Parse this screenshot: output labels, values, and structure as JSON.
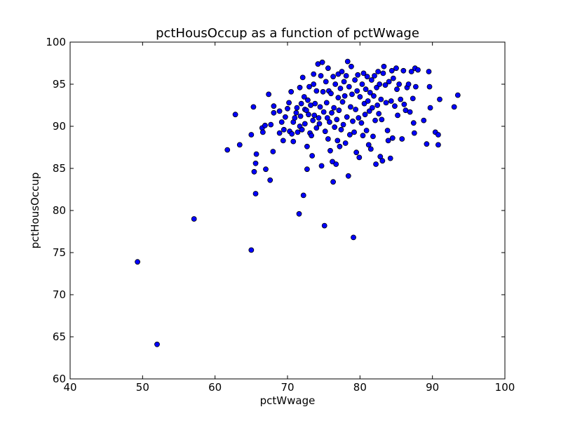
{
  "chart_data": {
    "type": "scatter",
    "title": "pctHousOccup as a function of pctWwage",
    "xlabel": "pctWwage",
    "ylabel": "pctHousOccup",
    "xlim": [
      40,
      100
    ],
    "ylim": [
      60,
      100
    ],
    "xticks": [
      40,
      50,
      60,
      70,
      80,
      90,
      100
    ],
    "yticks": [
      60,
      65,
      70,
      75,
      80,
      85,
      90,
      95,
      100
    ],
    "grid": false,
    "marker_color": "#0000ff",
    "marker_edge_color": "#000000",
    "points": [
      [
        49.3,
        73.9
      ],
      [
        52.0,
        64.1
      ],
      [
        57.1,
        79.0
      ],
      [
        61.7,
        87.2
      ],
      [
        62.8,
        91.4
      ],
      [
        63.4,
        87.8
      ],
      [
        65.0,
        89.0
      ],
      [
        65.0,
        75.3
      ],
      [
        65.3,
        92.3
      ],
      [
        65.4,
        84.6
      ],
      [
        65.6,
        82.0
      ],
      [
        65.6,
        85.6
      ],
      [
        65.7,
        86.7
      ],
      [
        66.5,
        89.8
      ],
      [
        66.6,
        89.3
      ],
      [
        66.9,
        90.1
      ],
      [
        67.0,
        84.9
      ],
      [
        67.4,
        93.8
      ],
      [
        67.6,
        83.6
      ],
      [
        67.7,
        90.2
      ],
      [
        68.0,
        87.0
      ],
      [
        68.1,
        91.6
      ],
      [
        68.1,
        92.4
      ],
      [
        68.9,
        91.8
      ],
      [
        68.9,
        89.2
      ],
      [
        69.2,
        90.5
      ],
      [
        69.4,
        88.3
      ],
      [
        69.5,
        89.6
      ],
      [
        69.7,
        91.1
      ],
      [
        70.0,
        92.1
      ],
      [
        70.2,
        92.8
      ],
      [
        70.3,
        89.4
      ],
      [
        70.5,
        94.1
      ],
      [
        70.6,
        89.1
      ],
      [
        70.8,
        90.5
      ],
      [
        70.8,
        88.2
      ],
      [
        71.0,
        91.0
      ],
      [
        71.2,
        91.6
      ],
      [
        71.3,
        92.2
      ],
      [
        71.4,
        89.3
      ],
      [
        71.6,
        79.6
      ],
      [
        71.7,
        94.6
      ],
      [
        71.7,
        90.0
      ],
      [
        71.8,
        91.2
      ],
      [
        71.9,
        92.7
      ],
      [
        72.0,
        89.6
      ],
      [
        72.1,
        95.8
      ],
      [
        72.2,
        81.8
      ],
      [
        72.3,
        93.5
      ],
      [
        72.4,
        92.0
      ],
      [
        72.4,
        90.3
      ],
      [
        72.6,
        91.9
      ],
      [
        72.7,
        87.6
      ],
      [
        72.7,
        84.9
      ],
      [
        72.8,
        93.1
      ],
      [
        72.9,
        91.4
      ],
      [
        73.0,
        94.7
      ],
      [
        73.1,
        89.2
      ],
      [
        73.2,
        92.5
      ],
      [
        73.3,
        88.9
      ],
      [
        73.4,
        86.5
      ],
      [
        73.5,
        90.7
      ],
      [
        73.6,
        96.2
      ],
      [
        73.6,
        95.0
      ],
      [
        73.7,
        91.3
      ],
      [
        73.8,
        92.7
      ],
      [
        74.0,
        89.8
      ],
      [
        74.0,
        94.2
      ],
      [
        74.2,
        97.4
      ],
      [
        74.3,
        91.0
      ],
      [
        74.4,
        90.3
      ],
      [
        74.5,
        92.3
      ],
      [
        74.6,
        96.0
      ],
      [
        74.7,
        85.3
      ],
      [
        74.8,
        97.6
      ],
      [
        74.9,
        94.1
      ],
      [
        75.0,
        91.7
      ],
      [
        75.1,
        78.2
      ],
      [
        75.2,
        89.4
      ],
      [
        75.3,
        95.3
      ],
      [
        75.4,
        92.8
      ],
      [
        75.5,
        91.0
      ],
      [
        75.6,
        88.5
      ],
      [
        75.6,
        96.9
      ],
      [
        75.7,
        94.2
      ],
      [
        75.8,
        90.5
      ],
      [
        75.9,
        87.1
      ],
      [
        76.0,
        93.9
      ],
      [
        76.1,
        91.6
      ],
      [
        76.2,
        85.8
      ],
      [
        76.3,
        95.9
      ],
      [
        76.3,
        83.4
      ],
      [
        76.4,
        92.2
      ],
      [
        76.5,
        89.9
      ],
      [
        76.6,
        95.0
      ],
      [
        76.7,
        85.5
      ],
      [
        76.8,
        90.8
      ],
      [
        76.9,
        88.3
      ],
      [
        77.0,
        93.4
      ],
      [
        77.0,
        96.2
      ],
      [
        77.1,
        91.9
      ],
      [
        77.2,
        87.6
      ],
      [
        77.3,
        94.5
      ],
      [
        77.4,
        89.6
      ],
      [
        77.5,
        96.5
      ],
      [
        77.6,
        92.9
      ],
      [
        77.7,
        90.2
      ],
      [
        77.8,
        95.3
      ],
      [
        77.9,
        93.6
      ],
      [
        78.0,
        88.0
      ],
      [
        78.1,
        96.0
      ],
      [
        78.2,
        91.1
      ],
      [
        78.3,
        97.7
      ],
      [
        78.4,
        84.1
      ],
      [
        78.5,
        94.7
      ],
      [
        78.6,
        89.0
      ],
      [
        78.7,
        92.3
      ],
      [
        78.8,
        97.1
      ],
      [
        78.9,
        93.8
      ],
      [
        79.0,
        90.6
      ],
      [
        79.1,
        76.8
      ],
      [
        79.2,
        89.3
      ],
      [
        79.3,
        95.5
      ],
      [
        79.4,
        92.0
      ],
      [
        79.5,
        86.9
      ],
      [
        79.6,
        94.2
      ],
      [
        79.7,
        96.1
      ],
      [
        79.8,
        91.0
      ],
      [
        79.9,
        86.3
      ],
      [
        80.0,
        93.5
      ],
      [
        80.2,
        90.4
      ],
      [
        80.3,
        95.0
      ],
      [
        80.4,
        88.9
      ],
      [
        80.5,
        96.3
      ],
      [
        80.6,
        92.7
      ],
      [
        80.7,
        91.4
      ],
      [
        80.8,
        94.4
      ],
      [
        80.9,
        89.5
      ],
      [
        81.0,
        95.9
      ],
      [
        81.1,
        93.0
      ],
      [
        81.2,
        87.8
      ],
      [
        81.3,
        91.8
      ],
      [
        81.4,
        94.0
      ],
      [
        81.5,
        87.3
      ],
      [
        81.6,
        95.5
      ],
      [
        81.7,
        92.2
      ],
      [
        81.8,
        88.8
      ],
      [
        81.9,
        93.6
      ],
      [
        82.0,
        96.0
      ],
      [
        82.1,
        90.7
      ],
      [
        82.2,
        85.5
      ],
      [
        82.3,
        94.6
      ],
      [
        82.4,
        92.5
      ],
      [
        82.5,
        96.5
      ],
      [
        82.6,
        91.5
      ],
      [
        82.7,
        95.0
      ],
      [
        82.8,
        86.4
      ],
      [
        82.9,
        93.2
      ],
      [
        83.0,
        90.8
      ],
      [
        83.1,
        85.9
      ],
      [
        83.2,
        96.3
      ],
      [
        83.3,
        97.1
      ],
      [
        83.5,
        94.9
      ],
      [
        83.6,
        92.8
      ],
      [
        83.8,
        89.5
      ],
      [
        83.9,
        88.3
      ],
      [
        84.0,
        95.3
      ],
      [
        84.2,
        86.2
      ],
      [
        84.3,
        93.0
      ],
      [
        84.4,
        96.6
      ],
      [
        84.5,
        88.6
      ],
      [
        84.6,
        95.7
      ],
      [
        84.8,
        92.4
      ],
      [
        85.0,
        96.9
      ],
      [
        85.1,
        94.4
      ],
      [
        85.2,
        91.3
      ],
      [
        85.4,
        95.0
      ],
      [
        85.6,
        93.2
      ],
      [
        85.8,
        88.5
      ],
      [
        86.0,
        96.6
      ],
      [
        86.1,
        92.6
      ],
      [
        86.3,
        91.9
      ],
      [
        86.5,
        94.6
      ],
      [
        86.7,
        95.0
      ],
      [
        86.9,
        91.7
      ],
      [
        87.1,
        96.5
      ],
      [
        87.3,
        93.3
      ],
      [
        87.4,
        90.4
      ],
      [
        87.5,
        89.2
      ],
      [
        87.6,
        96.9
      ],
      [
        87.7,
        94.7
      ],
      [
        88.0,
        96.7
      ],
      [
        88.8,
        90.7
      ],
      [
        89.2,
        87.9
      ],
      [
        89.5,
        96.5
      ],
      [
        89.6,
        94.7
      ],
      [
        89.7,
        92.2
      ],
      [
        90.4,
        89.3
      ],
      [
        90.8,
        87.8
      ],
      [
        90.8,
        89.0
      ],
      [
        91.0,
        93.2
      ],
      [
        93.0,
        92.3
      ],
      [
        93.5,
        93.7
      ]
    ]
  }
}
